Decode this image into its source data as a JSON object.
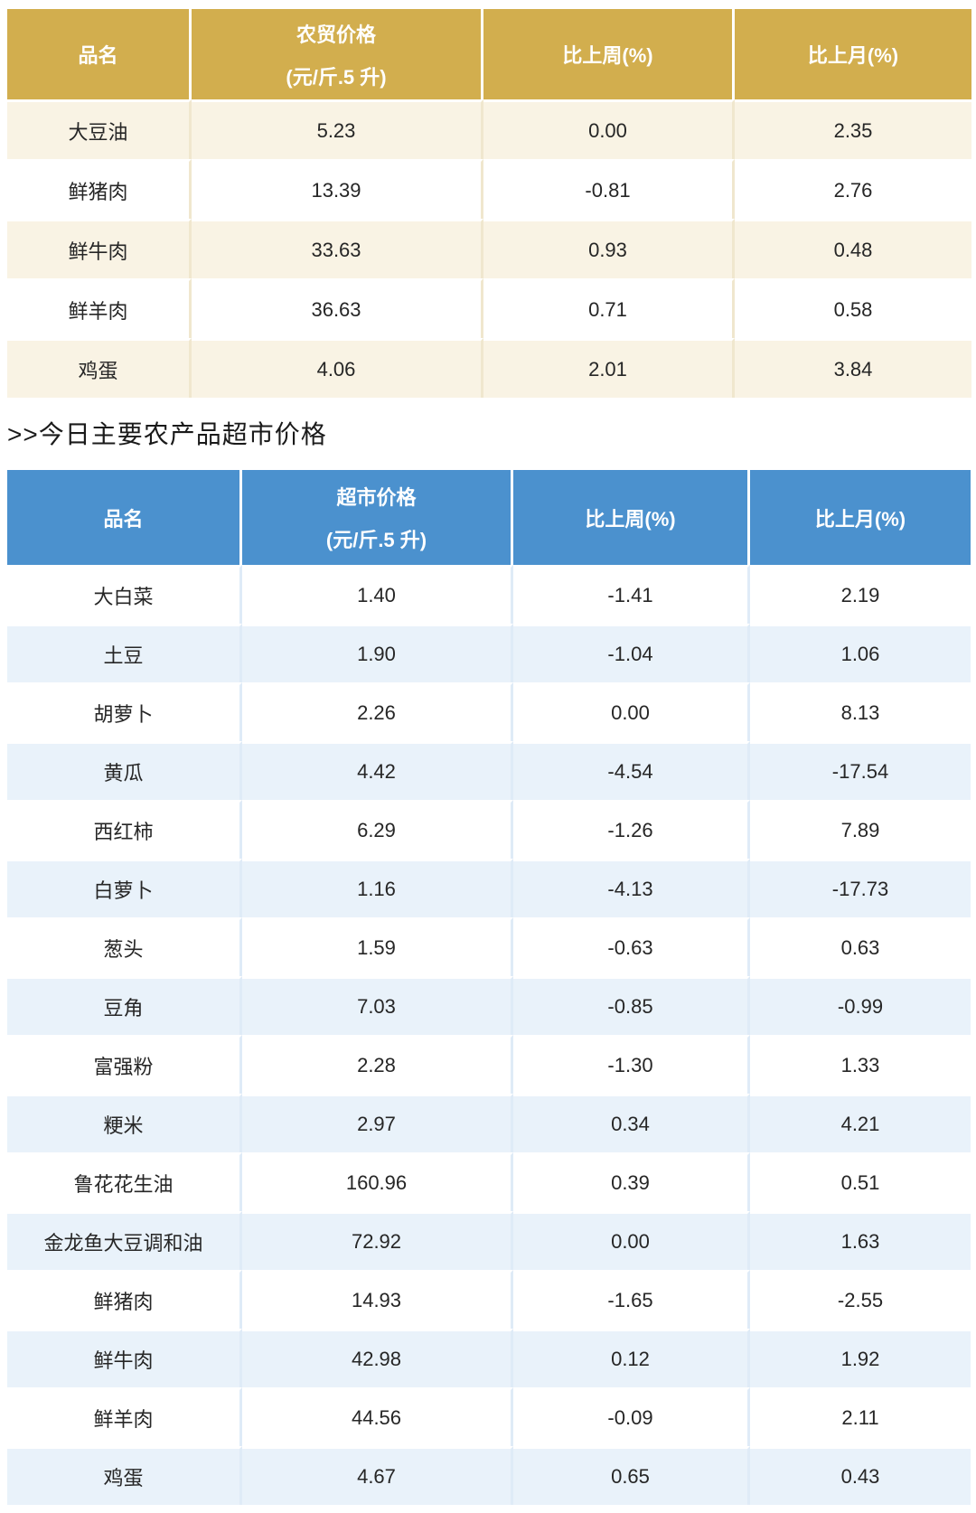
{
  "section": {
    "title": ">>今日主要农产品超市价格"
  },
  "farm_table": {
    "header": {
      "product": "品名",
      "price_line1": "农贸价格",
      "price_line2": "(元/斤.5 升)",
      "vs_week": "比上周(%)",
      "vs_month": "比上月(%)"
    },
    "rows": [
      {
        "name": "大豆油",
        "price": "5.23",
        "wow": "0.00",
        "mom": "2.35"
      },
      {
        "name": "鲜猪肉",
        "price": "13.39",
        "wow": "-0.81",
        "mom": "2.76"
      },
      {
        "name": "鲜牛肉",
        "price": "33.63",
        "wow": "0.93",
        "mom": "0.48"
      },
      {
        "name": "鲜羊肉",
        "price": "36.63",
        "wow": "0.71",
        "mom": "0.58"
      },
      {
        "name": "鸡蛋",
        "price": "4.06",
        "wow": "2.01",
        "mom": "3.84"
      }
    ]
  },
  "super_table": {
    "header": {
      "product": "品名",
      "price_line1": "超市价格",
      "price_line2": "(元/斤.5 升)",
      "vs_week": "比上周(%)",
      "vs_month": "比上月(%)"
    },
    "rows": [
      {
        "name": "大白菜",
        "price": "1.40",
        "wow": "-1.41",
        "mom": "2.19"
      },
      {
        "name": "土豆",
        "price": "1.90",
        "wow": "-1.04",
        "mom": "1.06"
      },
      {
        "name": "胡萝卜",
        "price": "2.26",
        "wow": "0.00",
        "mom": "8.13"
      },
      {
        "name": "黄瓜",
        "price": "4.42",
        "wow": "-4.54",
        "mom": "-17.54"
      },
      {
        "name": "西红柿",
        "price": "6.29",
        "wow": "-1.26",
        "mom": "7.89"
      },
      {
        "name": "白萝卜",
        "price": "1.16",
        "wow": "-4.13",
        "mom": "-17.73"
      },
      {
        "name": "葱头",
        "price": "1.59",
        "wow": "-0.63",
        "mom": "0.63"
      },
      {
        "name": "豆角",
        "price": "7.03",
        "wow": "-0.85",
        "mom": "-0.99"
      },
      {
        "name": "富强粉",
        "price": "2.28",
        "wow": "-1.30",
        "mom": "1.33"
      },
      {
        "name": "粳米",
        "price": "2.97",
        "wow": "0.34",
        "mom": "4.21"
      },
      {
        "name": "鲁花花生油",
        "price": "160.96",
        "wow": "0.39",
        "mom": "0.51"
      },
      {
        "name": "金龙鱼大豆调和油",
        "price": "72.92",
        "wow": "0.00",
        "mom": "1.63"
      },
      {
        "name": "鲜猪肉",
        "price": "14.93",
        "wow": "-1.65",
        "mom": "-2.55"
      },
      {
        "name": "鲜牛肉",
        "price": "42.98",
        "wow": "0.12",
        "mom": "1.92"
      },
      {
        "name": "鲜羊肉",
        "price": "44.56",
        "wow": "-0.09",
        "mom": "2.11"
      },
      {
        "name": "鸡蛋",
        "price": "4.67",
        "wow": "0.65",
        "mom": "0.43"
      }
    ]
  },
  "colors": {
    "farm_header_bg": "#d2ae4e",
    "farm_stripe_bg": "#f9f3e4",
    "super_header_bg": "#4b91ce",
    "super_stripe_bg": "#e9f2fa",
    "header_text": "#ffffff",
    "body_text": "#262626"
  }
}
